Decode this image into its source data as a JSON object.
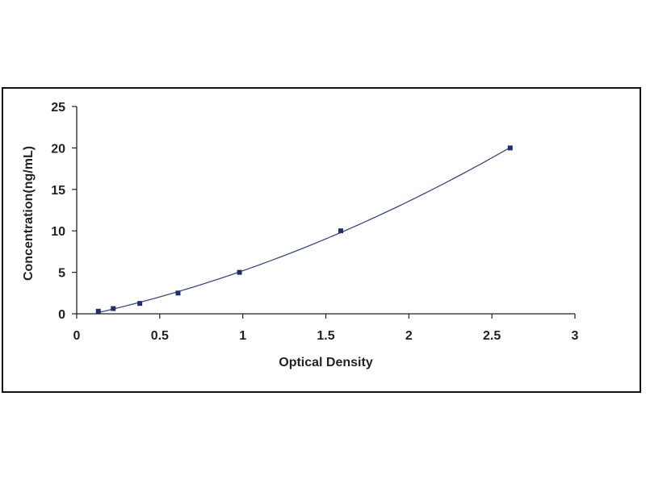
{
  "chart_data": {
    "type": "scatter",
    "title": "",
    "xlabel": "Optical Density",
    "ylabel": "Concentration(ng/mL)",
    "xlim": [
      0,
      3
    ],
    "ylim": [
      0,
      25
    ],
    "xticks": [
      0,
      0.5,
      1,
      1.5,
      2,
      2.5,
      3
    ],
    "yticks": [
      0,
      5,
      10,
      15,
      20,
      25
    ],
    "xtick_labels": [
      "0",
      "0.5",
      "1",
      "1.5",
      "2",
      "2.5",
      "3"
    ],
    "ytick_labels": [
      "0",
      "5",
      "10",
      "15",
      "20",
      "25"
    ],
    "grid": false,
    "legend": "none",
    "fit_line": true,
    "series": [
      {
        "x": [
          0.13,
          0.22,
          0.38,
          0.61,
          0.98,
          1.59,
          2.61
        ],
        "y": [
          0.31,
          0.63,
          1.25,
          2.5,
          5,
          10,
          20
        ]
      }
    ],
    "colors": {
      "points": "#1f2e6e",
      "curve": "#3a4a7a",
      "axis": "#222222"
    }
  }
}
